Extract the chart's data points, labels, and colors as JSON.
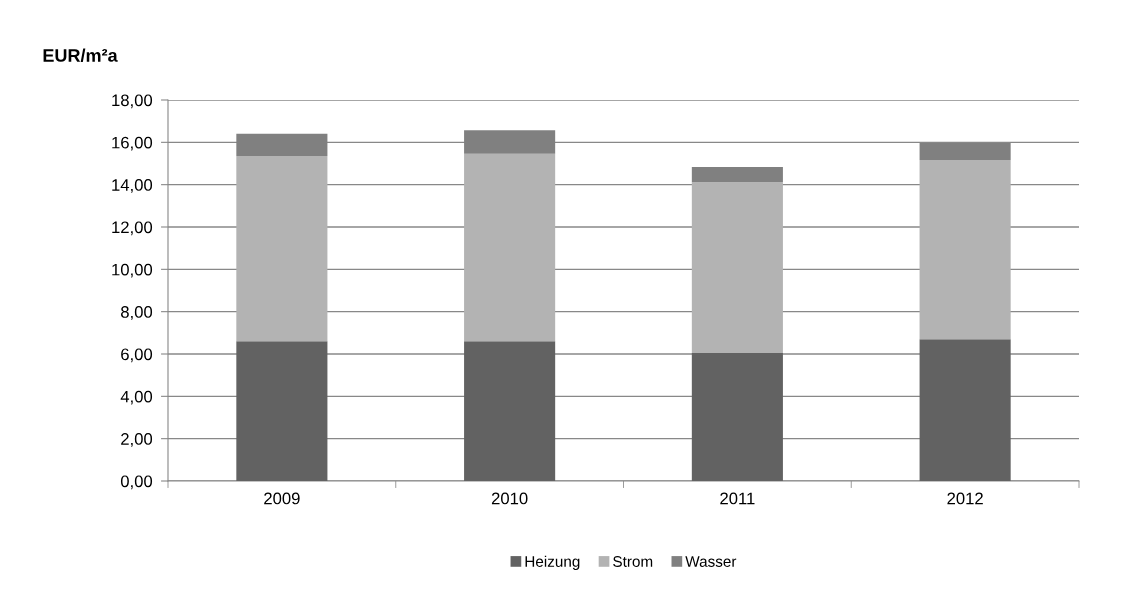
{
  "chart_data": {
    "type": "bar",
    "stacked": true,
    "ylabel": "EUR/m²a",
    "categories": [
      "2009",
      "2010",
      "2011",
      "2012"
    ],
    "series": [
      {
        "name": "Heizung",
        "color": "#626262",
        "values": [
          6.6,
          6.6,
          6.05,
          6.7
        ]
      },
      {
        "name": "Strom",
        "color": "#b3b3b3",
        "values": [
          8.75,
          8.86,
          8.06,
          8.46
        ]
      },
      {
        "name": "Wasser",
        "color": "#808080",
        "values": [
          1.05,
          1.11,
          0.73,
          0.81
        ]
      }
    ],
    "ylim": [
      0,
      18
    ],
    "yticks": [
      {
        "value": 0,
        "label": "0,00"
      },
      {
        "value": 2,
        "label": "2,00"
      },
      {
        "value": 4,
        "label": "4,00"
      },
      {
        "value": 6,
        "label": "6,00"
      },
      {
        "value": 8,
        "label": "8,00"
      },
      {
        "value": 10,
        "label": "10,00"
      },
      {
        "value": 12,
        "label": "12,00"
      },
      {
        "value": 14,
        "label": "14,00"
      },
      {
        "value": 16,
        "label": "16,00"
      },
      {
        "value": 18,
        "label": "18,00"
      }
    ],
    "grid": "y",
    "legend": "bottom"
  }
}
